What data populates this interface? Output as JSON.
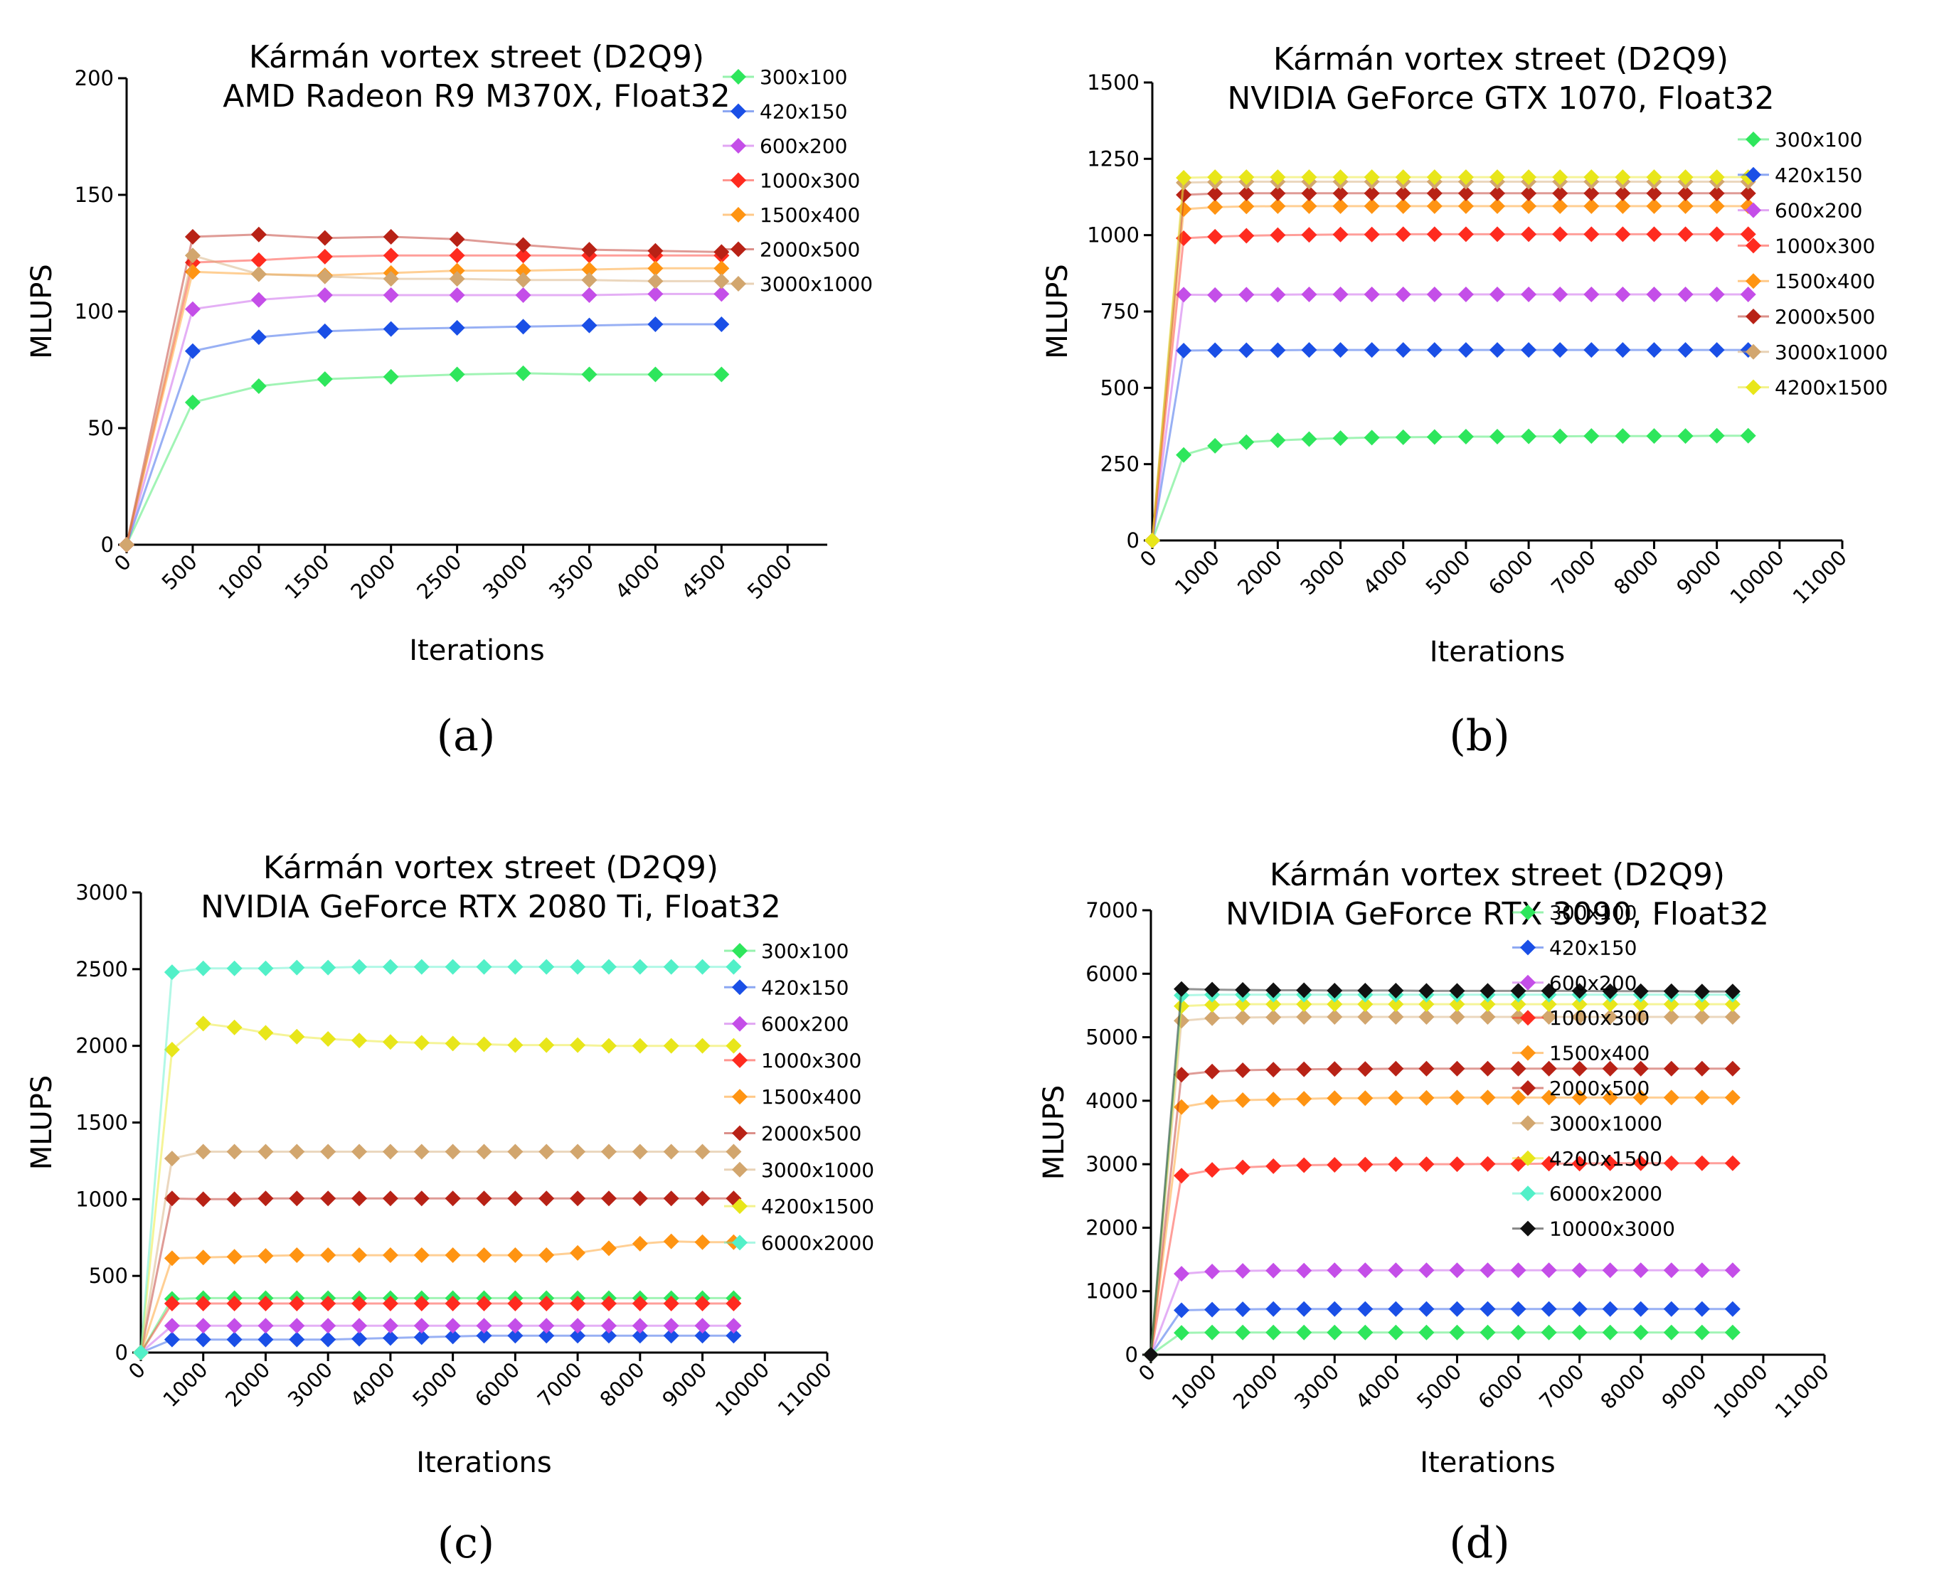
{
  "figure": {
    "panel_letters": [
      "(a)",
      "(b)",
      "(c)",
      "(d)"
    ]
  },
  "chart_data": [
    {
      "type": "line",
      "title": "Kármán vortex street (D2Q9)",
      "subtitle": "AMD Radeon R9 M370X, Float32",
      "xlabel": "Iterations",
      "ylabel": "MLUPS",
      "xlim": [
        0,
        5300
      ],
      "ylim": [
        0,
        200
      ],
      "xticks": [
        0,
        500,
        1000,
        1500,
        2000,
        2500,
        3000,
        3500,
        4000,
        4500,
        5000
      ],
      "yticks": [
        0,
        50,
        100,
        150,
        200
      ],
      "legend_position": "top-right",
      "x": [
        0,
        500,
        1000,
        1500,
        2000,
        2500,
        3000,
        3500,
        4000,
        4500
      ],
      "series": [
        {
          "name": "300x100",
          "color": "#2ee65c",
          "values": [
            0,
            61,
            68,
            71,
            72,
            73,
            73.5,
            73,
            73,
            73
          ]
        },
        {
          "name": "420x150",
          "color": "#1a4fe6",
          "values": [
            0,
            83,
            89,
            91.5,
            92.5,
            93,
            93.5,
            94,
            94.5,
            94.5
          ]
        },
        {
          "name": "600x200",
          "color": "#c44ee8",
          "values": [
            0,
            101,
            105,
            107,
            107,
            107,
            107,
            107,
            107.5,
            107.5
          ]
        },
        {
          "name": "1000x300",
          "color": "#ff2b1f",
          "values": [
            0,
            121,
            122,
            123.5,
            124,
            124,
            124,
            124,
            124,
            124
          ]
        },
        {
          "name": "1500x400",
          "color": "#ff9412",
          "values": [
            0,
            117,
            116,
            115.5,
            116.5,
            117.5,
            117.5,
            118,
            118.5,
            118.5
          ]
        },
        {
          "name": "2000x500",
          "color": "#b82216",
          "values": [
            0,
            132,
            133,
            131.5,
            132,
            131,
            128.5,
            126.5,
            126,
            125.5
          ]
        },
        {
          "name": "3000x1000",
          "color": "#d2a66e",
          "values": [
            0,
            124,
            116,
            115,
            114,
            114,
            113.5,
            113.5,
            113,
            113
          ]
        }
      ]
    },
    {
      "type": "line",
      "title": "Kármán vortex street (D2Q9)",
      "subtitle": "NVIDIA GeForce GTX 1070, Float32",
      "xlabel": "Iterations",
      "ylabel": "MLUPS",
      "xlim": [
        0,
        11000
      ],
      "ylim": [
        0,
        1500
      ],
      "xticks": [
        0,
        1000,
        2000,
        3000,
        4000,
        5000,
        6000,
        7000,
        8000,
        9000,
        10000,
        11000
      ],
      "yticks": [
        0,
        250,
        500,
        750,
        1000,
        1250,
        1500
      ],
      "legend_position": "right",
      "x": [
        0,
        500,
        1000,
        1500,
        2000,
        2500,
        3000,
        3500,
        4000,
        4500,
        5000,
        5500,
        6000,
        6500,
        7000,
        7500,
        8000,
        8500,
        9000,
        9500
      ],
      "series": [
        {
          "name": "300x100",
          "color": "#2ee65c",
          "values": [
            0,
            280,
            310,
            322,
            328,
            332,
            335,
            337,
            338,
            339,
            340,
            340,
            341,
            341,
            342,
            342,
            342,
            342,
            343,
            343
          ]
        },
        {
          "name": "420x150",
          "color": "#1a4fe6",
          "values": [
            0,
            622,
            623,
            623,
            623,
            624,
            624,
            624,
            624,
            624,
            624,
            624,
            624,
            624,
            624,
            624,
            624,
            624,
            624,
            624
          ]
        },
        {
          "name": "600x200",
          "color": "#c44ee8",
          "values": [
            0,
            805,
            804,
            805,
            805,
            806,
            806,
            806,
            806,
            806,
            806,
            806,
            806,
            806,
            806,
            806,
            806,
            806,
            806,
            806
          ]
        },
        {
          "name": "1000x300",
          "color": "#ff2b1f",
          "values": [
            0,
            990,
            995,
            998,
            1000,
            1001,
            1002,
            1002,
            1003,
            1003,
            1003,
            1003,
            1003,
            1003,
            1003,
            1003,
            1003,
            1003,
            1003,
            1003
          ]
        },
        {
          "name": "1500x400",
          "color": "#ff9412",
          "values": [
            0,
            1085,
            1092,
            1094,
            1095,
            1095,
            1095,
            1095,
            1095,
            1095,
            1095,
            1095,
            1095,
            1095,
            1095,
            1095,
            1095,
            1095,
            1095,
            1095
          ]
        },
        {
          "name": "2000x500",
          "color": "#b82216",
          "values": [
            0,
            1132,
            1136,
            1137,
            1137,
            1137,
            1137,
            1137,
            1137,
            1137,
            1137,
            1137,
            1137,
            1137,
            1137,
            1137,
            1137,
            1137,
            1137,
            1137
          ]
        },
        {
          "name": "3000x1000",
          "color": "#d2a66e",
          "values": [
            0,
            1172,
            1174,
            1175,
            1175,
            1175,
            1175,
            1175,
            1175,
            1175,
            1175,
            1175,
            1175,
            1175,
            1175,
            1175,
            1175,
            1175,
            1175,
            1175
          ]
        },
        {
          "name": "4200x1500",
          "color": "#e8e61a",
          "values": [
            0,
            1188,
            1190,
            1190,
            1190,
            1190,
            1190,
            1190,
            1190,
            1190,
            1190,
            1190,
            1190,
            1190,
            1190,
            1190,
            1190,
            1190,
            1190,
            1190
          ]
        }
      ]
    },
    {
      "type": "line",
      "title": "Kármán vortex street (D2Q9)",
      "subtitle": "NVIDIA GeForce RTX 2080 Ti, Float32",
      "xlabel": "Iterations",
      "ylabel": "MLUPS",
      "xlim": [
        0,
        11000
      ],
      "ylim": [
        0,
        3000
      ],
      "xticks": [
        0,
        1000,
        2000,
        3000,
        4000,
        5000,
        6000,
        7000,
        8000,
        9000,
        10000,
        11000
      ],
      "yticks": [
        0,
        500,
        1000,
        1500,
        2000,
        2500,
        3000
      ],
      "legend_position": "right",
      "x": [
        0,
        500,
        1000,
        1500,
        2000,
        2500,
        3000,
        3500,
        4000,
        4500,
        5000,
        5500,
        6000,
        6500,
        7000,
        7500,
        8000,
        8500,
        9000,
        9500
      ],
      "series": [
        {
          "name": "300x100",
          "color": "#2ee65c",
          "values": [
            0,
            350,
            355,
            355,
            355,
            355,
            355,
            355,
            355,
            355,
            355,
            355,
            355,
            355,
            355,
            355,
            355,
            355,
            355,
            355
          ]
        },
        {
          "name": "420x150",
          "color": "#1a4fe6",
          "values": [
            0,
            85,
            85,
            85,
            85,
            85,
            85,
            90,
            95,
            100,
            105,
            110,
            110,
            110,
            110,
            110,
            110,
            110,
            110,
            110
          ]
        },
        {
          "name": "600x200",
          "color": "#c44ee8",
          "values": [
            0,
            175,
            175,
            175,
            175,
            175,
            175,
            175,
            175,
            175,
            175,
            175,
            175,
            175,
            175,
            175,
            175,
            175,
            175,
            175
          ]
        },
        {
          "name": "1000x300",
          "color": "#ff2b1f",
          "values": [
            0,
            320,
            320,
            320,
            320,
            320,
            320,
            320,
            320,
            320,
            320,
            320,
            320,
            320,
            320,
            320,
            320,
            320,
            320,
            320
          ]
        },
        {
          "name": "1500x400",
          "color": "#ff9412",
          "values": [
            0,
            615,
            620,
            625,
            630,
            635,
            635,
            635,
            635,
            635,
            635,
            635,
            635,
            635,
            650,
            680,
            710,
            725,
            720,
            720
          ]
        },
        {
          "name": "2000x500",
          "color": "#b82216",
          "values": [
            0,
            1005,
            1000,
            1000,
            1005,
            1005,
            1005,
            1005,
            1005,
            1005,
            1005,
            1005,
            1005,
            1005,
            1005,
            1005,
            1005,
            1005,
            1005,
            1005
          ]
        },
        {
          "name": "3000x1000",
          "color": "#d2a66e",
          "values": [
            0,
            1265,
            1310,
            1310,
            1310,
            1310,
            1310,
            1310,
            1310,
            1310,
            1310,
            1310,
            1310,
            1310,
            1310,
            1310,
            1310,
            1310,
            1310,
            1310
          ]
        },
        {
          "name": "4200x1500",
          "color": "#e8e61a",
          "values": [
            0,
            1975,
            2145,
            2120,
            2085,
            2060,
            2045,
            2035,
            2025,
            2020,
            2015,
            2010,
            2005,
            2005,
            2005,
            2000,
            2000,
            2000,
            2000,
            2000
          ]
        },
        {
          "name": "6000x2000",
          "color": "#52f0c8",
          "values": [
            0,
            2480,
            2505,
            2505,
            2505,
            2510,
            2510,
            2515,
            2515,
            2515,
            2515,
            2515,
            2515,
            2515,
            2515,
            2515,
            2515,
            2515,
            2515,
            2515
          ]
        }
      ]
    },
    {
      "type": "line",
      "title": "Kármán vortex street (D2Q9)",
      "subtitle": "NVIDIA GeForce RTX 3090, Float32",
      "xlabel": "Iterations",
      "ylabel": "MLUPS",
      "xlim": [
        0,
        11000
      ],
      "ylim": [
        0,
        7000
      ],
      "xticks": [
        0,
        1000,
        2000,
        3000,
        4000,
        5000,
        6000,
        7000,
        8000,
        9000,
        10000,
        11000
      ],
      "yticks": [
        0,
        1000,
        2000,
        3000,
        4000,
        5000,
        6000,
        7000
      ],
      "legend_position": "top-right",
      "x": [
        0,
        500,
        1000,
        1500,
        2000,
        2500,
        3000,
        3500,
        4000,
        4500,
        5000,
        5500,
        6000,
        6500,
        7000,
        7500,
        8000,
        8500,
        9000,
        9500
      ],
      "series": [
        {
          "name": "300x100",
          "color": "#2ee65c",
          "values": [
            0,
            345,
            350,
            350,
            350,
            350,
            350,
            350,
            350,
            350,
            350,
            350,
            350,
            350,
            350,
            350,
            350,
            350,
            350,
            350
          ]
        },
        {
          "name": "420x150",
          "color": "#1a4fe6",
          "values": [
            0,
            700,
            710,
            715,
            720,
            720,
            720,
            720,
            720,
            720,
            720,
            720,
            720,
            720,
            720,
            720,
            720,
            720,
            720,
            720
          ]
        },
        {
          "name": "600x200",
          "color": "#c44ee8",
          "values": [
            0,
            1275,
            1310,
            1320,
            1325,
            1325,
            1330,
            1330,
            1330,
            1330,
            1330,
            1330,
            1330,
            1330,
            1330,
            1330,
            1330,
            1330,
            1330,
            1330
          ]
        },
        {
          "name": "1000x300",
          "color": "#ff2b1f",
          "values": [
            0,
            2820,
            2910,
            2950,
            2970,
            2985,
            2990,
            2995,
            3000,
            3000,
            3000,
            3005,
            3005,
            3010,
            3010,
            3015,
            3015,
            3015,
            3015,
            3015
          ]
        },
        {
          "name": "1500x400",
          "color": "#ff9412",
          "values": [
            0,
            3900,
            3980,
            4010,
            4020,
            4030,
            4040,
            4040,
            4045,
            4045,
            4050,
            4050,
            4050,
            4050,
            4050,
            4050,
            4050,
            4050,
            4050,
            4050
          ]
        },
        {
          "name": "2000x500",
          "color": "#b82216",
          "values": [
            0,
            4410,
            4460,
            4480,
            4490,
            4495,
            4500,
            4500,
            4505,
            4505,
            4505,
            4505,
            4505,
            4505,
            4505,
            4505,
            4505,
            4505,
            4505,
            4505
          ]
        },
        {
          "name": "3000x1000",
          "color": "#d2a66e",
          "values": [
            0,
            5260,
            5300,
            5310,
            5315,
            5320,
            5320,
            5320,
            5320,
            5320,
            5320,
            5320,
            5320,
            5320,
            5320,
            5320,
            5320,
            5320,
            5320,
            5320
          ]
        },
        {
          "name": "4200x1500",
          "color": "#e8e61a",
          "values": [
            0,
            5490,
            5510,
            5520,
            5520,
            5520,
            5520,
            5520,
            5520,
            5520,
            5520,
            5520,
            5520,
            5520,
            5520,
            5520,
            5520,
            5520,
            5520,
            5520
          ]
        },
        {
          "name": "6000x2000",
          "color": "#52f0c8",
          "values": [
            0,
            5660,
            5670,
            5670,
            5670,
            5670,
            5670,
            5670,
            5670,
            5670,
            5670,
            5670,
            5670,
            5670,
            5670,
            5670,
            5670,
            5670,
            5670,
            5670
          ]
        },
        {
          "name": "10000x3000",
          "color": "#111111",
          "values": [
            0,
            5760,
            5750,
            5745,
            5740,
            5740,
            5735,
            5735,
            5735,
            5730,
            5730,
            5730,
            5730,
            5730,
            5730,
            5725,
            5725,
            5725,
            5720,
            5720
          ]
        }
      ]
    }
  ]
}
